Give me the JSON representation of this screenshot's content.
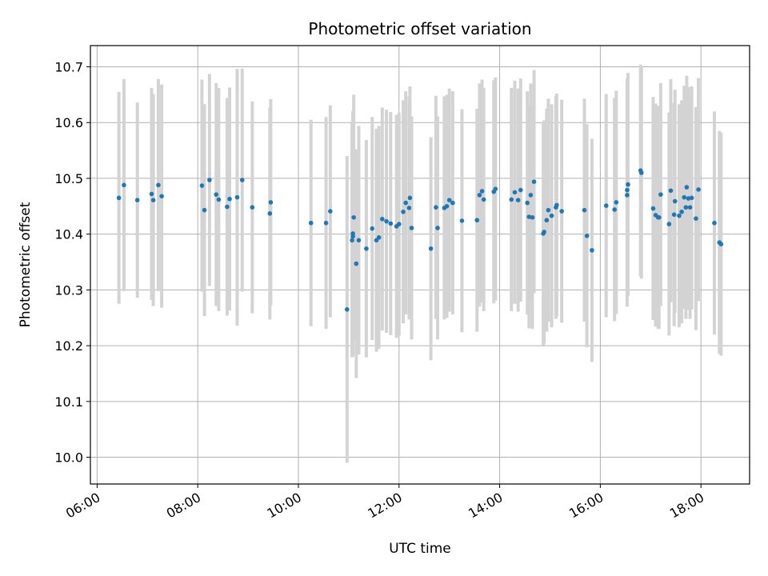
{
  "chart_data": {
    "type": "scatter",
    "title": "Photometric offset variation",
    "xlabel": "UTC time",
    "ylabel": "Photometric offset",
    "xlim": [
      "05:52",
      "18:58"
    ],
    "ylim": [
      9.952,
      10.738
    ],
    "grid": true,
    "xticks": [
      "06:00",
      "08:00",
      "10:00",
      "12:00",
      "14:00",
      "16:00",
      "18:00"
    ],
    "yticks": [
      "10.0",
      "10.1",
      "10.2",
      "10.3",
      "10.4",
      "10.5",
      "10.6",
      "10.7"
    ],
    "colors": {
      "point": "#1f77b4",
      "errorbar": "#d3d3d3",
      "grid": "#b0b0b0"
    },
    "series": [
      {
        "columns": [
          "time",
          "offset",
          "error"
        ],
        "points": [
          [
            "06:26",
            10.465,
            0.19
          ],
          [
            "06:32",
            10.488,
            0.19
          ],
          [
            "06:48",
            10.461,
            0.175
          ],
          [
            "07:05",
            10.472,
            0.19
          ],
          [
            "07:07",
            10.461,
            0.19
          ],
          [
            "07:13",
            10.488,
            0.19
          ],
          [
            "07:17",
            10.468,
            0.2
          ],
          [
            "08:05",
            10.487,
            0.19
          ],
          [
            "08:08",
            10.443,
            0.19
          ],
          [
            "08:14",
            10.497,
            0.19
          ],
          [
            "08:22",
            10.471,
            0.2
          ],
          [
            "08:25",
            10.462,
            0.2
          ],
          [
            "08:35",
            10.449,
            0.195
          ],
          [
            "08:38",
            10.463,
            0.2
          ],
          [
            "08:47",
            10.466,
            0.23
          ],
          [
            "08:53",
            10.497,
            0.2
          ],
          [
            "09:05",
            10.448,
            0.19
          ],
          [
            "09:26",
            10.437,
            0.19
          ],
          [
            "09:27",
            10.457,
            0.185
          ],
          [
            "10:15",
            10.42,
            0.185
          ],
          [
            "10:33",
            10.42,
            0.19
          ],
          [
            "10:38",
            10.441,
            0.19
          ],
          [
            "10:58",
            10.265,
            0.275
          ],
          [
            "11:04",
            10.389,
            0.21
          ],
          [
            "11:05",
            10.396,
            0.215
          ],
          [
            "11:05",
            10.401,
            0.22
          ],
          [
            "11:06",
            10.43,
            0.22
          ],
          [
            "11:09",
            10.347,
            0.205
          ],
          [
            "11:12",
            10.389,
            0.205
          ],
          [
            "11:21",
            10.374,
            0.195
          ],
          [
            "11:28",
            10.41,
            0.2
          ],
          [
            "11:33",
            10.389,
            0.2
          ],
          [
            "11:36",
            10.394,
            0.2
          ],
          [
            "11:40",
            10.427,
            0.2
          ],
          [
            "11:45",
            10.423,
            0.2
          ],
          [
            "11:50",
            10.419,
            0.2
          ],
          [
            "11:57",
            10.414,
            0.2
          ],
          [
            "12:00",
            10.418,
            0.2
          ],
          [
            "12:05",
            10.44,
            0.2
          ],
          [
            "12:08",
            10.456,
            0.2
          ],
          [
            "12:12",
            10.447,
            0.2
          ],
          [
            "12:13",
            10.465,
            0.2
          ],
          [
            "12:15",
            10.411,
            0.2
          ],
          [
            "12:38",
            10.374,
            0.2
          ],
          [
            "12:44",
            10.448,
            0.2
          ],
          [
            "12:46",
            10.411,
            0.2
          ],
          [
            "12:54",
            10.447,
            0.2
          ],
          [
            "12:57",
            10.45,
            0.2
          ],
          [
            "13:00",
            10.461,
            0.2
          ],
          [
            "13:04",
            10.456,
            0.2
          ],
          [
            "13:15",
            10.424,
            0.2
          ],
          [
            "13:33",
            10.425,
            0.2
          ],
          [
            "13:36",
            10.47,
            0.2
          ],
          [
            "13:39",
            10.477,
            0.2
          ],
          [
            "13:41",
            10.462,
            0.2
          ],
          [
            "13:53",
            10.476,
            0.2
          ],
          [
            "13:55",
            10.481,
            0.2
          ],
          [
            "14:14",
            10.462,
            0.2
          ],
          [
            "14:18",
            10.475,
            0.2
          ],
          [
            "14:22",
            10.461,
            0.2
          ],
          [
            "14:25",
            10.479,
            0.2
          ],
          [
            "14:33",
            10.456,
            0.2
          ],
          [
            "14:35",
            10.431,
            0.2
          ],
          [
            "14:37",
            10.47,
            0.2
          ],
          [
            "14:39",
            10.43,
            0.2
          ],
          [
            "14:41",
            10.494,
            0.2
          ],
          [
            "14:52",
            10.401,
            0.2
          ],
          [
            "14:53",
            10.404,
            0.2
          ],
          [
            "14:56",
            10.425,
            0.2
          ],
          [
            "14:58",
            10.443,
            0.2
          ],
          [
            "15:02",
            10.433,
            0.2
          ],
          [
            "15:07",
            10.448,
            0.2
          ],
          [
            "15:08",
            10.452,
            0.2
          ],
          [
            "15:14",
            10.441,
            0.2
          ],
          [
            "15:41",
            10.443,
            0.2
          ],
          [
            "15:44",
            10.397,
            0.2
          ],
          [
            "15:50",
            10.371,
            0.2
          ],
          [
            "16:07",
            10.451,
            0.2
          ],
          [
            "16:17",
            10.444,
            0.2
          ],
          [
            "16:19",
            10.457,
            0.2
          ],
          [
            "16:32",
            10.47,
            0.2
          ],
          [
            "16:32",
            10.479,
            0.2
          ],
          [
            "16:33",
            10.489,
            0.2
          ],
          [
            "16:48",
            10.514,
            0.19
          ],
          [
            "16:49",
            10.51,
            0.19
          ],
          [
            "17:03",
            10.446,
            0.2
          ],
          [
            "17:06",
            10.434,
            0.2
          ],
          [
            "17:09",
            10.43,
            0.2
          ],
          [
            "17:10",
            10.43,
            0.2
          ],
          [
            "17:12",
            10.471,
            0.2
          ],
          [
            "17:22",
            10.418,
            0.2
          ],
          [
            "17:24",
            10.478,
            0.2
          ],
          [
            "17:28",
            10.435,
            0.2
          ],
          [
            "17:29",
            10.459,
            0.2
          ],
          [
            "17:34",
            10.433,
            0.2
          ],
          [
            "17:37",
            10.44,
            0.2
          ],
          [
            "17:40",
            10.466,
            0.2
          ],
          [
            "17:42",
            10.448,
            0.2
          ],
          [
            "17:43",
            10.484,
            0.2
          ],
          [
            "17:45",
            10.464,
            0.2
          ],
          [
            "17:47",
            10.448,
            0.2
          ],
          [
            "17:49",
            10.465,
            0.2
          ],
          [
            "17:54",
            10.428,
            0.2
          ],
          [
            "17:57",
            10.48,
            0.2
          ],
          [
            "18:16",
            10.42,
            0.2
          ],
          [
            "18:22",
            10.385,
            0.2
          ],
          [
            "18:24",
            10.382,
            0.2
          ]
        ]
      }
    ]
  }
}
